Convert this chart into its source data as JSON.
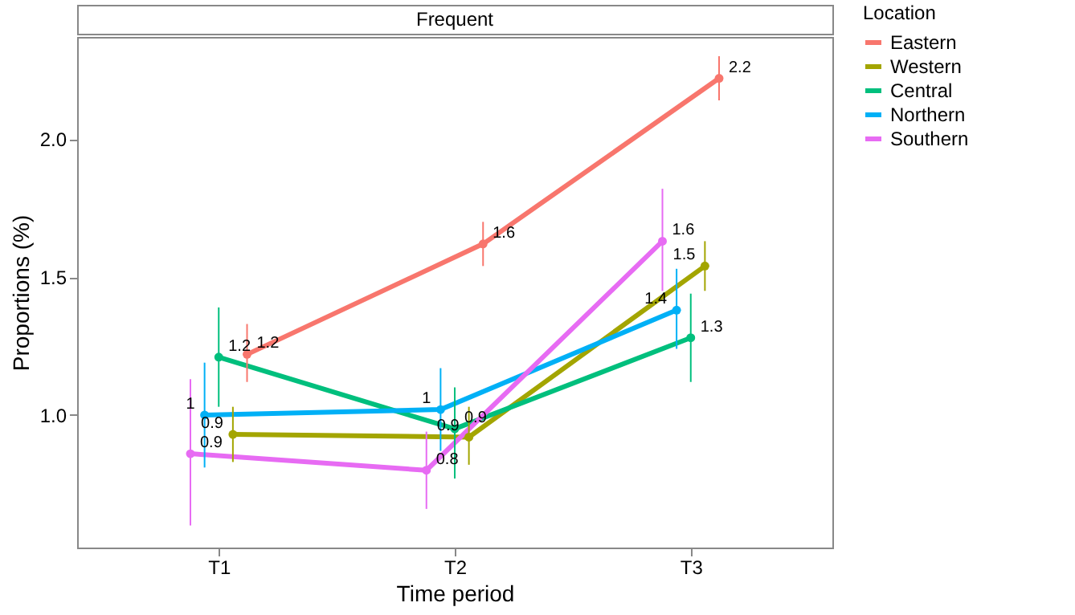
{
  "chart_data": {
    "type": "line",
    "title": "Frequent",
    "xlabel": "Time period",
    "ylabel": "Proportions (%)",
    "legend_title": "Location",
    "legend": "right",
    "grid": false,
    "marker": "circle",
    "line_style": "solid",
    "categories": [
      "T1",
      "T2",
      "T3"
    ],
    "ylim": [
      0.52,
      2.37
    ],
    "yticks": [
      {
        "value": 1.0,
        "label": "1.0"
      },
      {
        "value": 1.5,
        "label": "1.5"
      },
      {
        "value": 2.0,
        "label": "2.0"
      }
    ],
    "series": [
      {
        "name": "Eastern",
        "color": "#f8766d",
        "values": [
          1.22,
          1.62,
          2.22
        ],
        "errors": [
          [
            1.12,
            1.33
          ],
          [
            1.54,
            1.7
          ],
          [
            2.14,
            2.3
          ]
        ],
        "value_labels": [
          "1.2",
          "1.6",
          "2.2"
        ]
      },
      {
        "name": "Western",
        "color": "#a3a500",
        "values": [
          0.93,
          0.92,
          1.54
        ],
        "errors": [
          [
            0.83,
            1.03
          ],
          [
            0.82,
            1.03
          ],
          [
            1.45,
            1.63
          ]
        ],
        "value_labels": [
          "0.9",
          "0.9",
          "1.5"
        ]
      },
      {
        "name": "Central",
        "color": "#00bf7d",
        "values": [
          1.21,
          0.95,
          1.28
        ],
        "errors": [
          [
            1.03,
            1.39
          ],
          [
            0.77,
            1.1
          ],
          [
            1.12,
            1.44
          ]
        ],
        "value_labels": [
          "1.2",
          "0.9",
          "1.3"
        ]
      },
      {
        "name": "Northern",
        "color": "#00b0f6",
        "values": [
          1.0,
          1.02,
          1.38
        ],
        "errors": [
          [
            0.81,
            1.19
          ],
          [
            0.87,
            1.17
          ],
          [
            1.24,
            1.53
          ]
        ],
        "value_labels": [
          "1",
          "1",
          "1.4"
        ]
      },
      {
        "name": "Southern",
        "color": "#e76bf3",
        "values": [
          0.86,
          0.8,
          1.63
        ],
        "errors": [
          [
            0.6,
            1.13
          ],
          [
            0.66,
            0.94
          ],
          [
            1.45,
            1.82
          ]
        ],
        "value_labels": [
          "0.9",
          "0.8",
          "1.6"
        ]
      }
    ]
  }
}
